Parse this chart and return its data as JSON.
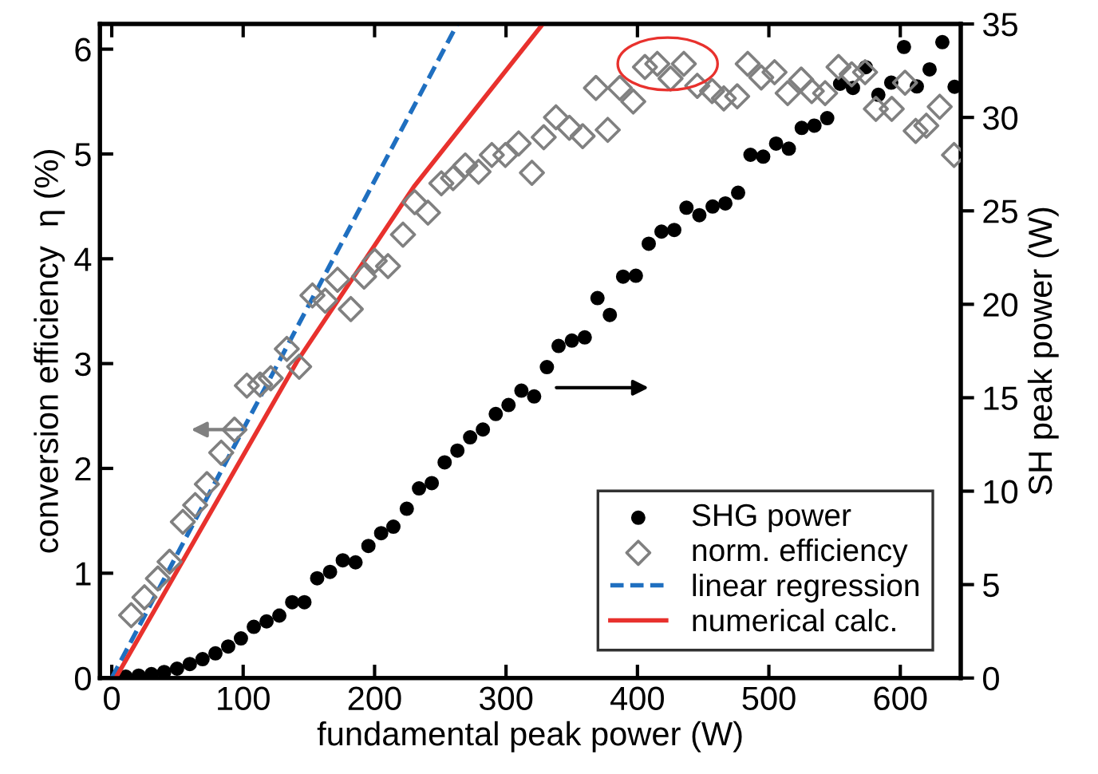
{
  "chart_data": {
    "type": "scatter",
    "xlabel": "fundamental peak power (W)",
    "ylabel": "conversion efficiency  η (%)",
    "y2label": "SH peak power (W)",
    "xlim": [
      -9,
      646
    ],
    "xticks": [
      0,
      100,
      200,
      300,
      400,
      500,
      600
    ],
    "ylim": [
      0,
      6.24
    ],
    "yticks": [
      0,
      1,
      2,
      3,
      4,
      5,
      6
    ],
    "y2lim": [
      0,
      35
    ],
    "y2ticks": [
      0,
      5,
      10,
      15,
      20,
      25,
      30,
      35
    ],
    "legend": "bottom right",
    "grid": false,
    "series": [
      {
        "name": "SHG power",
        "axis": "y2",
        "marker": "circle",
        "color": "#000000",
        "x": [
          10.7,
          20.5,
          30.2,
          39.9,
          49.7,
          59.4,
          69.1,
          78.9,
          88.6,
          98.3,
          108.1,
          117.8,
          127.5,
          137.3,
          146.6,
          156.3,
          166.1,
          175.8,
          185.5,
          195.3,
          205,
          214.3,
          224.5,
          233.8,
          243.5,
          253.3,
          263,
          272.7,
          282.4,
          292.2,
          301.9,
          311.7,
          321.4,
          331.1,
          340,
          350.1,
          359.9,
          369.6,
          379,
          389.1,
          398.8,
          408.6,
          418.3,
          428,
          437.3,
          447.1,
          457.2,
          466.9,
          476.6,
          486,
          495.7,
          505.5,
          515.2,
          525,
          534.7,
          544.4,
          554.2,
          564,
          573.7,
          583.3,
          593.1,
          602.8,
          612.6,
          622.3,
          632,
          641.3
        ],
        "values": [
          0.07,
          0.13,
          0.21,
          0.32,
          0.5,
          0.75,
          1.01,
          1.32,
          1.69,
          2.12,
          2.74,
          3.03,
          3.34,
          4.06,
          4.06,
          5.34,
          5.68,
          6.3,
          6.19,
          7.07,
          7.75,
          8.1,
          9.06,
          10.15,
          10.43,
          11.54,
          12.17,
          12.88,
          13.3,
          14.13,
          14.61,
          15.38,
          15.07,
          16.64,
          17.77,
          18.06,
          18.23,
          20.33,
          19.43,
          21.48,
          21.53,
          23.24,
          23.89,
          23.98,
          25.17,
          24.77,
          25.23,
          25.4,
          25.97,
          28.0,
          27.9,
          28.6,
          28.33,
          29.44,
          29.56,
          29.96,
          31.8,
          31.58,
          32.69,
          31.21,
          31.86,
          33.77,
          31.66,
          32.57,
          34.03,
          31.64
        ]
      },
      {
        "name": "norm. efficiency",
        "marker": "diamond",
        "color": "#808080",
        "x": [
          14.8,
          24.9,
          35.1,
          44,
          54.1,
          63.5,
          72.4,
          83.3,
          93.4,
          102.8,
          112.9,
          121,
          133.2,
          142.6,
          152.7,
          162.4,
          171.8,
          181.9,
          192,
          200.1,
          210.2,
          221.6,
          230.5,
          240.6,
          250.8,
          259.7,
          269,
          279.1,
          289.2,
          299.5,
          309.6,
          319.7,
          328.7,
          338,
          348.2,
          358.3,
          368.4,
          377.4,
          386.6,
          396.8,
          405.7,
          415.1,
          425.2,
          435.3,
          445.5,
          456.8,
          465.7,
          475.9,
          483.9,
          494.2,
          504.3,
          514.3,
          524.6,
          532.6,
          542.8,
          553,
          563,
          573.2,
          581.4,
          593.5,
          603.6,
          611.7,
          619.8,
          630,
          640.9
        ],
        "values": [
          0.6,
          0.77,
          0.95,
          1.11,
          1.49,
          1.65,
          1.85,
          2.15,
          2.37,
          2.79,
          2.8,
          2.86,
          3.14,
          2.97,
          3.65,
          3.6,
          3.8,
          3.52,
          3.83,
          3.98,
          3.93,
          4.23,
          4.54,
          4.44,
          4.72,
          4.77,
          4.89,
          4.83,
          4.99,
          4.99,
          5.1,
          4.82,
          5.16,
          5.35,
          5.25,
          5.17,
          5.63,
          5.23,
          5.63,
          5.5,
          5.83,
          5.86,
          5.72,
          5.86,
          5.65,
          5.6,
          5.53,
          5.55,
          5.86,
          5.73,
          5.78,
          5.58,
          5.71,
          5.6,
          5.58,
          5.83,
          5.76,
          5.78,
          5.43,
          5.43,
          5.68,
          5.22,
          5.27,
          5.45,
          4.99
        ]
      },
      {
        "name": "linear regression",
        "type": "line",
        "line_style": "dashed",
        "color": "#1f6fc0",
        "x": [
          0,
          263
        ],
        "values": [
          0,
          6.24
        ]
      },
      {
        "name": "numerical calc.",
        "type": "line",
        "line_style": "solid",
        "color": "#e8312d",
        "x": [
          3,
          141,
          230,
          328
        ],
        "values": [
          0,
          3.02,
          4.69,
          6.24
        ]
      }
    ]
  }
}
